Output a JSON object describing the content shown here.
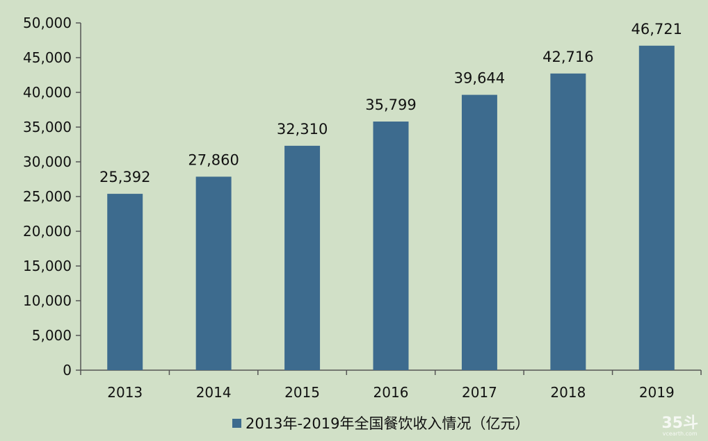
{
  "chart_data": {
    "type": "bar",
    "categories": [
      "2013",
      "2014",
      "2015",
      "2016",
      "2017",
      "2018",
      "2019"
    ],
    "series": [
      {
        "name": "2013年-2019年全国餐饮收入情况（亿元）",
        "values": [
          25392,
          27860,
          32310,
          35799,
          39644,
          42716,
          46721
        ]
      }
    ],
    "data_labels": [
      "25,392",
      "27,860",
      "32,310",
      "35,799",
      "39,644",
      "42,716",
      "46,721"
    ],
    "y_ticks": [
      "0",
      "5,000",
      "10,000",
      "15,000",
      "20,000",
      "25,000",
      "30,000",
      "35,000",
      "40,000",
      "45,000",
      "50,000"
    ],
    "ylim": [
      0,
      50000
    ],
    "title": "",
    "xlabel": "",
    "ylabel": "",
    "grid": false,
    "legend_position": "bottom",
    "bar_color": "#3d6b8e",
    "axis_color": "#555555"
  },
  "watermark": {
    "main": "35斗",
    "sub": "vcearth.com"
  }
}
